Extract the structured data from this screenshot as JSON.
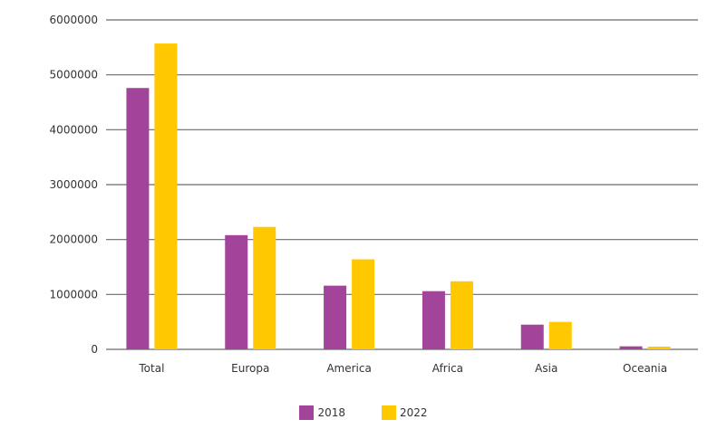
{
  "chart_data": {
    "type": "bar",
    "title": "",
    "xlabel": "",
    "ylabel": "",
    "categories": [
      "Total",
      "Europa",
      "America",
      "Africa",
      "Asia",
      "Oceania"
    ],
    "series": [
      {
        "name": "2018",
        "color": "#a3449b",
        "values": [
          4760000,
          2080000,
          1160000,
          1060000,
          450000,
          55000
        ]
      },
      {
        "name": "2022",
        "color": "#ffc800",
        "values": [
          5570000,
          2230000,
          1640000,
          1240000,
          500000,
          50000
        ]
      }
    ],
    "ylim": [
      0,
      6000000
    ],
    "yticks": [
      "0",
      "1000000",
      "2000000",
      "3000000",
      "4000000",
      "5000000",
      "6000000"
    ],
    "grid": true,
    "legend_position": "bottom"
  }
}
